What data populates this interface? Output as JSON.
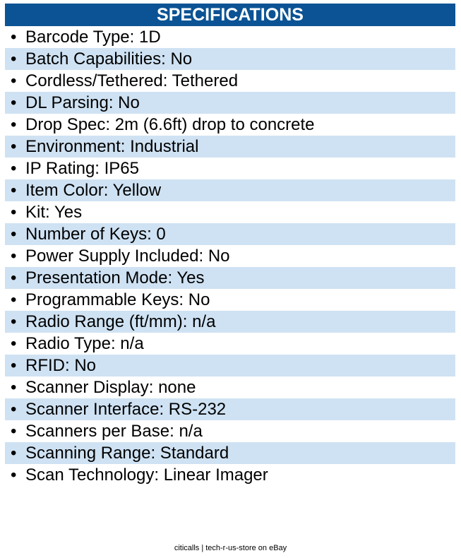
{
  "header": {
    "title": "SPECIFICATIONS"
  },
  "specs": [
    "Barcode Type: 1D",
    "Batch Capabilities: No",
    "Cordless/Tethered: Tethered",
    "DL Parsing: No",
    "Drop Spec: 2m (6.6ft) drop to concrete",
    "Environment: Industrial",
    "IP Rating: IP65",
    "Item Color: Yellow",
    "Kit: Yes",
    "Number of Keys: 0",
    "Power Supply Included: No",
    "Presentation Mode: Yes",
    "Programmable Keys: No",
    "Radio Range (ft/mm): n/a",
    "Radio Type: n/a",
    "RFID: No",
    "Scanner Display: none",
    "Scanner Interface: RS-232",
    "Scanners per Base: n/a",
    "Scanning Range: Standard",
    "Scan Technology: Linear Imager"
  ],
  "bullet": "•",
  "footer": "citicalls | tech-r-us-store on eBay",
  "colors": {
    "header_bg": "#0b5394",
    "stripe": "#cfe2f3"
  }
}
